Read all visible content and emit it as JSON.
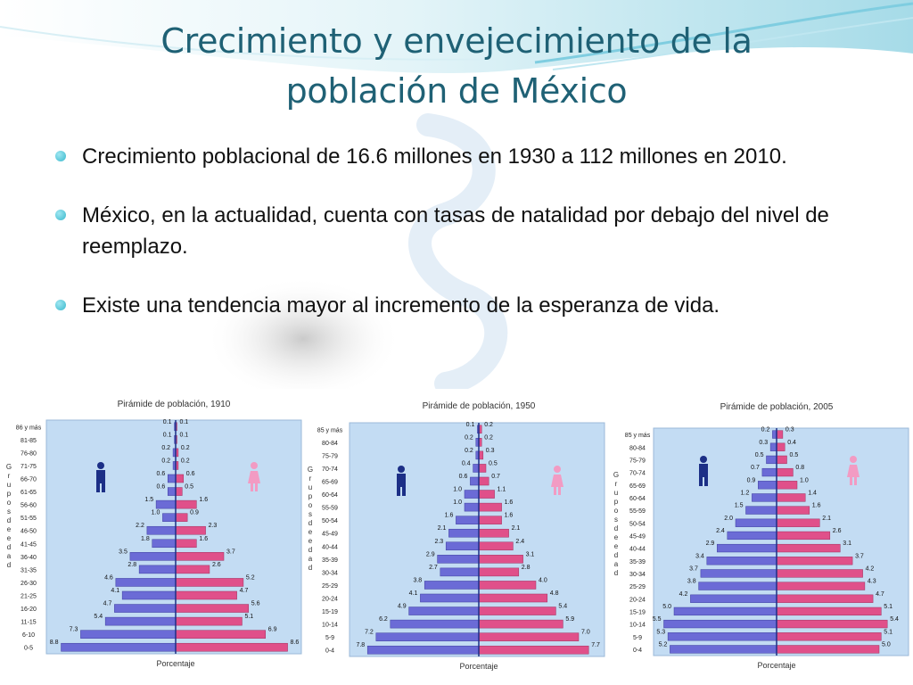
{
  "slide": {
    "title_line1": "Crecimiento y envejecimiento de la",
    "title_line2": "población de México",
    "bullets": [
      "Crecimiento poblacional de 16.6 millones en 1930 a 112 millones en 2010.",
      "México, en la actualidad, cuenta con tasas de natalidad por debajo del nivel de reemplazo.",
      "Existe una tendencia mayor al incremento de la esperanza de vida."
    ],
    "colors": {
      "title": "#1f6175",
      "male_bar": "#6b6bd6",
      "female_bar": "#e0508a",
      "plot_bg": "#c3dcf3",
      "male_icon": "#1c2f86",
      "female_icon": "#f29bc3",
      "bullet": "#38b8cc"
    },
    "icons": [
      "male-figure-icon",
      "female-figure-icon"
    ]
  },
  "chart_data": [
    {
      "type": "bar",
      "orientation": "population-pyramid",
      "title": "Pirámide de población, 1910",
      "xlabel": "Porcentaje",
      "ylabel": "Grupos de edad",
      "categories": [
        "86 y más",
        "81-85",
        "76-80",
        "71-75",
        "66-70",
        "61-65",
        "56-60",
        "51-55",
        "46-50",
        "41-45",
        "36-40",
        "31-35",
        "26-30",
        "21-25",
        "16-20",
        "11-15",
        "6-10",
        "0-5"
      ],
      "series": [
        {
          "values": [
            0.1,
            0.1,
            0.2,
            0.2,
            0.6,
            0.6,
            1.5,
            1.0,
            2.2,
            1.8,
            3.5,
            2.8,
            4.6,
            4.1,
            4.7,
            5.4,
            7.3,
            8.8
          ]
        },
        {
          "values": [
            0.1,
            0.1,
            0.2,
            0.2,
            0.6,
            0.5,
            1.6,
            0.9,
            2.3,
            1.6,
            3.7,
            2.6,
            5.2,
            4.7,
            5.6,
            5.1,
            6.9,
            8.6
          ]
        }
      ],
      "xlim": [
        0,
        9
      ]
    },
    {
      "type": "bar",
      "orientation": "population-pyramid",
      "title": "Pirámide de población, 1950",
      "xlabel": "Porcentaje",
      "ylabel": "Grupos de edad",
      "categories": [
        "85 y más",
        "80-84",
        "75-79",
        "70-74",
        "65-69",
        "60-64",
        "55-59",
        "50-54",
        "45-49",
        "40-44",
        "35-39",
        "30-34",
        "25-29",
        "20-24",
        "15-19",
        "10-14",
        "5-9",
        "0-4"
      ],
      "series": [
        {
          "values": [
            0.1,
            0.2,
            0.2,
            0.4,
            0.6,
            1.0,
            1.0,
            1.6,
            2.1,
            2.3,
            2.9,
            2.7,
            3.8,
            4.1,
            4.9,
            6.2,
            7.2,
            7.8
          ]
        },
        {
          "values": [
            0.2,
            0.2,
            0.3,
            0.5,
            0.7,
            1.1,
            1.6,
            1.6,
            2.1,
            2.4,
            3.1,
            2.8,
            4.0,
            4.8,
            5.4,
            5.9,
            7.0,
            7.7
          ]
        }
      ],
      "xlim": [
        0,
        8
      ]
    },
    {
      "type": "bar",
      "orientation": "population-pyramid",
      "title": "Pirámide de población, 2005",
      "xlabel": "Porcentaje",
      "ylabel": "Grupos de edad",
      "categories": [
        "85 y más",
        "80-84",
        "75-79",
        "70-74",
        "65-69",
        "60-64",
        "55-59",
        "50-54",
        "45-49",
        "40-44",
        "35-39",
        "30-34",
        "25-29",
        "20-24",
        "15-19",
        "10-14",
        "5-9",
        "0-4"
      ],
      "series": [
        {
          "values": [
            0.2,
            0.3,
            0.5,
            0.7,
            0.9,
            1.2,
            1.5,
            2.0,
            2.4,
            2.9,
            3.4,
            3.7,
            3.8,
            4.2,
            5.0,
            5.5,
            5.3,
            5.2
          ]
        },
        {
          "values": [
            0.3,
            0.4,
            0.5,
            0.8,
            1.0,
            1.4,
            1.6,
            2.1,
            2.6,
            3.1,
            3.7,
            4.2,
            4.3,
            4.7,
            5.1,
            5.4,
            5.1,
            5.0
          ]
        }
      ],
      "xlim": [
        0,
        6
      ]
    }
  ]
}
